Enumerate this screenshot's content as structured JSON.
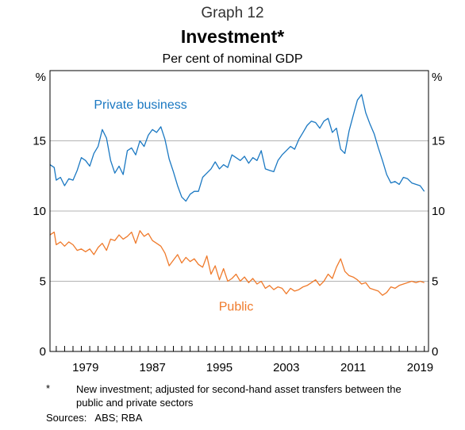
{
  "header": {
    "graph_label": "Graph 12",
    "title": "Investment*",
    "subtitle": "Per cent of nominal GDP"
  },
  "footer": {
    "footnote_marker": "*",
    "footnote": "New investment; adjusted for second-hand asset transfers between the public and private sectors",
    "sources": "Sources:   ABS; RBA"
  },
  "colors": {
    "private": "#1a78c2",
    "public": "#ef7a2b",
    "grid": "#b3b3b3",
    "axis": "#000000"
  },
  "chart_data": {
    "type": "line",
    "title": "Investment*",
    "subtitle": "Per cent of nominal GDP",
    "y_unit_left": "%",
    "y_unit_right": "%",
    "ylim": [
      0,
      20
    ],
    "yticks": [
      0,
      5,
      10,
      15
    ],
    "xlim": [
      1975.25,
      2020.5
    ],
    "xticks": [
      1979,
      1987,
      1995,
      2003,
      2011,
      2019
    ],
    "grid": true,
    "series": [
      {
        "name": "Private business",
        "color": "#1a78c2",
        "label_position": [
          1980.5,
          17.3
        ],
        "x": [
          1975.25,
          1975.75,
          1976.0,
          1976.5,
          1977.0,
          1977.5,
          1978.0,
          1978.5,
          1979.0,
          1979.5,
          1980.0,
          1980.5,
          1981.0,
          1981.5,
          1982.0,
          1982.5,
          1983.0,
          1983.5,
          1984.0,
          1984.5,
          1985.0,
          1985.5,
          1986.0,
          1986.5,
          1987.0,
          1987.5,
          1988.0,
          1988.5,
          1989.0,
          1989.5,
          1990.0,
          1990.5,
          1991.0,
          1991.5,
          1992.0,
          1992.5,
          1993.0,
          1993.5,
          1994.0,
          1994.5,
          1995.0,
          1995.5,
          1996.0,
          1996.5,
          1997.0,
          1997.5,
          1998.0,
          1998.5,
          1999.0,
          1999.5,
          2000.0,
          2000.5,
          2001.0,
          2001.5,
          2002.0,
          2002.5,
          2003.0,
          2003.5,
          2004.0,
          2004.5,
          2005.0,
          2005.5,
          2006.0,
          2006.5,
          2007.0,
          2007.5,
          2008.0,
          2008.5,
          2009.0,
          2009.5,
          2010.0,
          2010.5,
          2011.0,
          2011.5,
          2012.0,
          2012.5,
          2013.0,
          2013.5,
          2014.0,
          2014.5,
          2015.0,
          2015.5,
          2016.0,
          2016.5,
          2017.0,
          2017.5,
          2018.0,
          2018.5,
          2019.0,
          2019.5,
          2020.0
        ],
        "values": [
          13.3,
          13.1,
          12.2,
          12.4,
          11.8,
          12.3,
          12.2,
          12.9,
          13.8,
          13.6,
          13.2,
          14.1,
          14.6,
          15.8,
          15.2,
          13.6,
          12.7,
          13.2,
          12.6,
          14.3,
          14.5,
          14.0,
          15.0,
          14.6,
          15.4,
          15.8,
          15.6,
          16.0,
          15.1,
          13.7,
          12.8,
          11.8,
          11.0,
          10.7,
          11.2,
          11.4,
          11.4,
          12.4,
          12.7,
          13.0,
          13.5,
          13.0,
          13.3,
          13.1,
          14.0,
          13.8,
          13.6,
          13.9,
          13.4,
          13.8,
          13.6,
          14.3,
          13.0,
          12.9,
          12.8,
          13.6,
          14.0,
          14.3,
          14.6,
          14.4,
          15.1,
          15.6,
          16.1,
          16.4,
          16.3,
          15.9,
          16.4,
          16.6,
          15.6,
          15.9,
          14.4,
          14.1,
          15.7,
          16.8,
          17.9,
          18.3,
          17.0,
          16.2,
          15.5,
          14.5,
          13.6,
          12.6,
          12.0,
          12.1,
          11.9,
          12.4,
          12.3,
          12.0,
          11.9,
          11.8,
          11.4
        ]
      },
      {
        "name": "Public",
        "color": "#ef7a2b",
        "label_position": [
          1997.5,
          2.9
        ],
        "x": [
          1975.25,
          1975.75,
          1976.0,
          1976.5,
          1977.0,
          1977.5,
          1978.0,
          1978.5,
          1979.0,
          1979.5,
          1980.0,
          1980.5,
          1981.0,
          1981.5,
          1982.0,
          1982.5,
          1983.0,
          1983.5,
          1984.0,
          1984.5,
          1985.0,
          1985.5,
          1986.0,
          1986.5,
          1987.0,
          1987.5,
          1988.0,
          1988.5,
          1989.0,
          1989.5,
          1990.0,
          1990.5,
          1991.0,
          1991.5,
          1992.0,
          1992.5,
          1993.0,
          1993.5,
          1994.0,
          1994.5,
          1995.0,
          1995.5,
          1996.0,
          1996.5,
          1997.0,
          1997.5,
          1998.0,
          1998.5,
          1999.0,
          1999.5,
          2000.0,
          2000.5,
          2001.0,
          2001.5,
          2002.0,
          2002.5,
          2003.0,
          2003.5,
          2004.0,
          2004.5,
          2005.0,
          2005.5,
          2006.0,
          2006.5,
          2007.0,
          2007.5,
          2008.0,
          2008.5,
          2009.0,
          2009.5,
          2010.0,
          2010.5,
          2011.0,
          2011.5,
          2012.0,
          2012.5,
          2013.0,
          2013.5,
          2014.0,
          2014.5,
          2015.0,
          2015.5,
          2016.0,
          2016.5,
          2017.0,
          2017.5,
          2018.0,
          2018.5,
          2019.0,
          2019.5,
          2020.0
        ],
        "values": [
          8.3,
          8.5,
          7.6,
          7.8,
          7.5,
          7.8,
          7.6,
          7.2,
          7.3,
          7.1,
          7.3,
          6.9,
          7.4,
          7.7,
          7.2,
          8.0,
          7.9,
          8.3,
          8.0,
          8.2,
          8.5,
          7.7,
          8.6,
          8.2,
          8.4,
          7.9,
          7.7,
          7.5,
          7.0,
          6.1,
          6.5,
          6.9,
          6.3,
          6.7,
          6.4,
          6.6,
          6.2,
          6.0,
          6.8,
          5.5,
          6.1,
          5.1,
          5.9,
          5.0,
          5.2,
          5.5,
          5.0,
          5.3,
          4.9,
          5.2,
          4.8,
          5.0,
          4.5,
          4.7,
          4.4,
          4.6,
          4.5,
          4.1,
          4.5,
          4.3,
          4.4,
          4.6,
          4.7,
          4.9,
          5.1,
          4.7,
          5.0,
          5.5,
          5.2,
          6.0,
          6.6,
          5.7,
          5.4,
          5.3,
          5.1,
          4.8,
          4.9,
          4.5,
          4.4,
          4.3,
          4.0,
          4.2,
          4.6,
          4.5,
          4.7,
          4.8,
          4.9,
          5.0,
          4.9,
          5.0,
          4.9
        ]
      }
    ]
  }
}
